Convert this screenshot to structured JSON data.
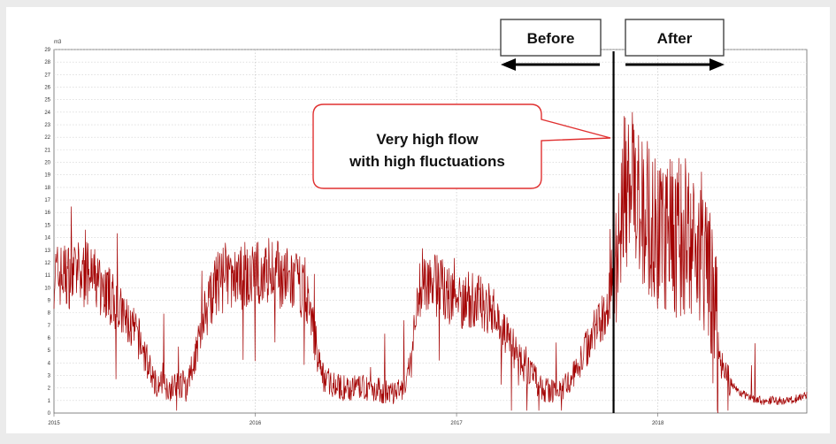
{
  "chart_data": {
    "type": "line",
    "title": "",
    "xlabel": "",
    "ylabel": "m3",
    "xlim": [
      2015.0,
      2018.74
    ],
    "ylim": [
      0,
      29
    ],
    "x_ticks": [
      "2015",
      "2016",
      "2017",
      "2018"
    ],
    "y_ticks": [
      0,
      1,
      2,
      3,
      4,
      5,
      6,
      7,
      8,
      9,
      10,
      11,
      12,
      13,
      14,
      15,
      16,
      17,
      18,
      19,
      20,
      21,
      22,
      23,
      24,
      25,
      26,
      27,
      28,
      29
    ],
    "grid": true,
    "series_color": "#a30000",
    "series": [
      {
        "x": [
          2015.0,
          2015.08,
          2015.17,
          2015.25,
          2015.33,
          2015.42,
          2015.5,
          2015.58,
          2015.67,
          2015.75,
          2015.83,
          2015.92,
          2016.0,
          2016.08,
          2016.17,
          2016.25,
          2016.33,
          2016.42,
          2016.5,
          2016.58,
          2016.67,
          2016.75,
          2016.83,
          2016.92,
          2017.0,
          2017.08,
          2017.17,
          2017.25,
          2017.33,
          2017.42,
          2017.5,
          2017.58,
          2017.67,
          2017.75,
          2017.83,
          2017.92,
          2018.0,
          2018.08,
          2018.17,
          2018.25,
          2018.29,
          2018.33,
          2018.42,
          2018.5,
          2018.58,
          2018.67,
          2018.74
        ],
        "y": [
          11,
          11,
          11,
          10,
          8,
          6,
          2.5,
          2,
          2.5,
          8,
          11,
          11,
          11,
          11.5,
          10.5,
          10,
          3,
          2,
          2,
          2,
          1.5,
          2,
          11,
          10,
          9,
          9,
          8.5,
          6,
          4,
          2,
          1.5,
          3,
          6,
          8,
          18,
          17,
          14,
          14,
          14,
          12,
          6,
          3,
          1.5,
          1,
          1,
          1,
          1.5
        ]
      }
    ],
    "annotations": {
      "event_date": 2017.78,
      "before_label": "Before",
      "after_label": "After",
      "callout_line1": "Very high flow",
      "callout_line2": "with high fluctuations"
    }
  }
}
